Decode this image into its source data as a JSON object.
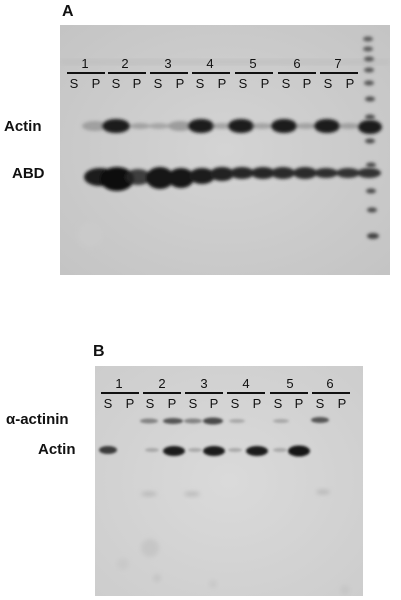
{
  "panel_a": {
    "letter": "A",
    "lanes": [
      "1",
      "2",
      "3",
      "4",
      "5",
      "6",
      "7"
    ],
    "sp": [
      "S",
      "P"
    ],
    "row_labels": {
      "actin": "Actin",
      "abd": "ABD"
    }
  },
  "panel_b": {
    "letter": "B",
    "lanes": [
      "1",
      "2",
      "3",
      "4",
      "5",
      "6"
    ],
    "sp": [
      "S",
      "P"
    ],
    "row_labels": {
      "alpha_actinin": "α-actinin",
      "actin": "Actin"
    }
  }
}
